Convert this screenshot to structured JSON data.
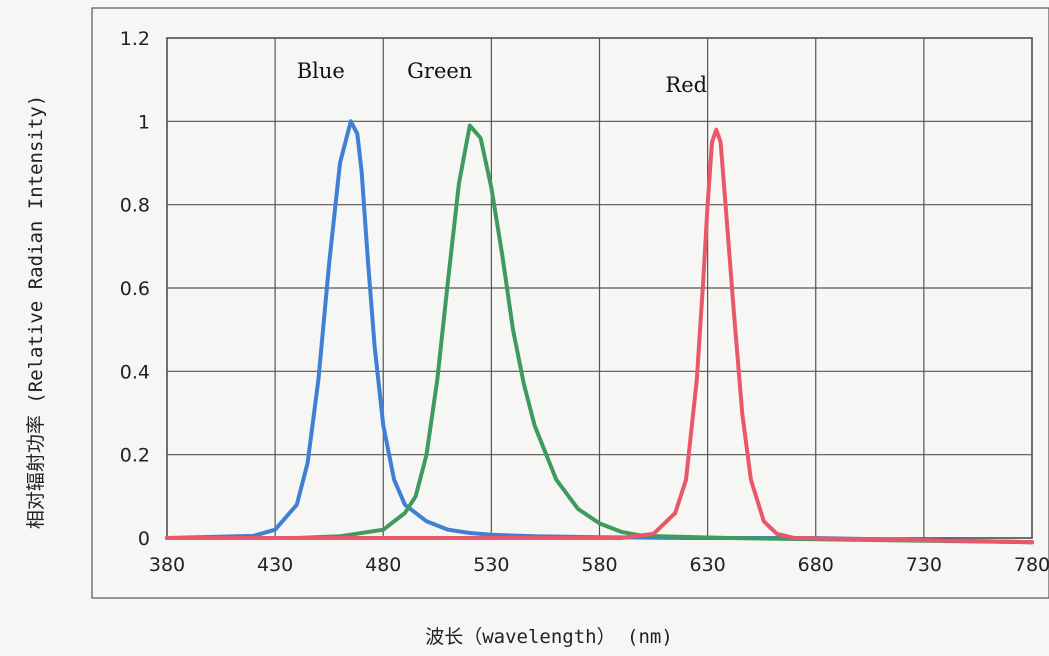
{
  "chart_data": {
    "type": "line",
    "xlabel": "波长（wavelength） (nm)",
    "ylabel": "相对辐射功率 (Relative Radian Intensity)",
    "xlim": [
      380,
      780
    ],
    "ylim": [
      0,
      1.2
    ],
    "x_ticks": [
      380,
      430,
      480,
      530,
      580,
      630,
      680,
      730,
      780
    ],
    "y_ticks": [
      "0",
      "0.2",
      "0.4",
      "0.6",
      "0.8",
      "1",
      "1.2"
    ],
    "grid": true,
    "series": [
      {
        "name": "Blue",
        "color": "#3f7fd4",
        "x": [
          380,
          420,
          430,
          440,
          445,
          450,
          455,
          460,
          465,
          468,
          470,
          473,
          476,
          480,
          485,
          490,
          500,
          510,
          520,
          530,
          550,
          580,
          620,
          680,
          780
        ],
        "y": [
          0.0,
          0.005,
          0.02,
          0.08,
          0.18,
          0.38,
          0.66,
          0.9,
          1.0,
          0.97,
          0.88,
          0.66,
          0.46,
          0.27,
          0.14,
          0.08,
          0.04,
          0.02,
          0.012,
          0.008,
          0.004,
          0.002,
          0.0,
          0.0,
          -0.01
        ]
      },
      {
        "name": "Green",
        "color": "#3e9a5e",
        "x": [
          380,
          440,
          460,
          480,
          490,
          495,
          500,
          505,
          510,
          515,
          520,
          525,
          530,
          535,
          540,
          545,
          550,
          560,
          570,
          580,
          590,
          600,
          640,
          780
        ],
        "y": [
          0.0,
          0.0,
          0.004,
          0.02,
          0.06,
          0.1,
          0.2,
          0.38,
          0.62,
          0.85,
          0.99,
          0.96,
          0.84,
          0.68,
          0.5,
          0.37,
          0.27,
          0.14,
          0.07,
          0.035,
          0.015,
          0.005,
          0.0,
          -0.01
        ]
      },
      {
        "name": "Red",
        "color": "#e8586a",
        "x": [
          380,
          590,
          605,
          615,
          620,
          625,
          628,
          630,
          632,
          634,
          636,
          638,
          642,
          646,
          650,
          656,
          662,
          670,
          780
        ],
        "y": [
          0.0,
          0.0,
          0.01,
          0.06,
          0.14,
          0.38,
          0.62,
          0.8,
          0.95,
          0.98,
          0.95,
          0.82,
          0.55,
          0.3,
          0.14,
          0.04,
          0.01,
          0.0,
          -0.01
        ]
      }
    ]
  }
}
